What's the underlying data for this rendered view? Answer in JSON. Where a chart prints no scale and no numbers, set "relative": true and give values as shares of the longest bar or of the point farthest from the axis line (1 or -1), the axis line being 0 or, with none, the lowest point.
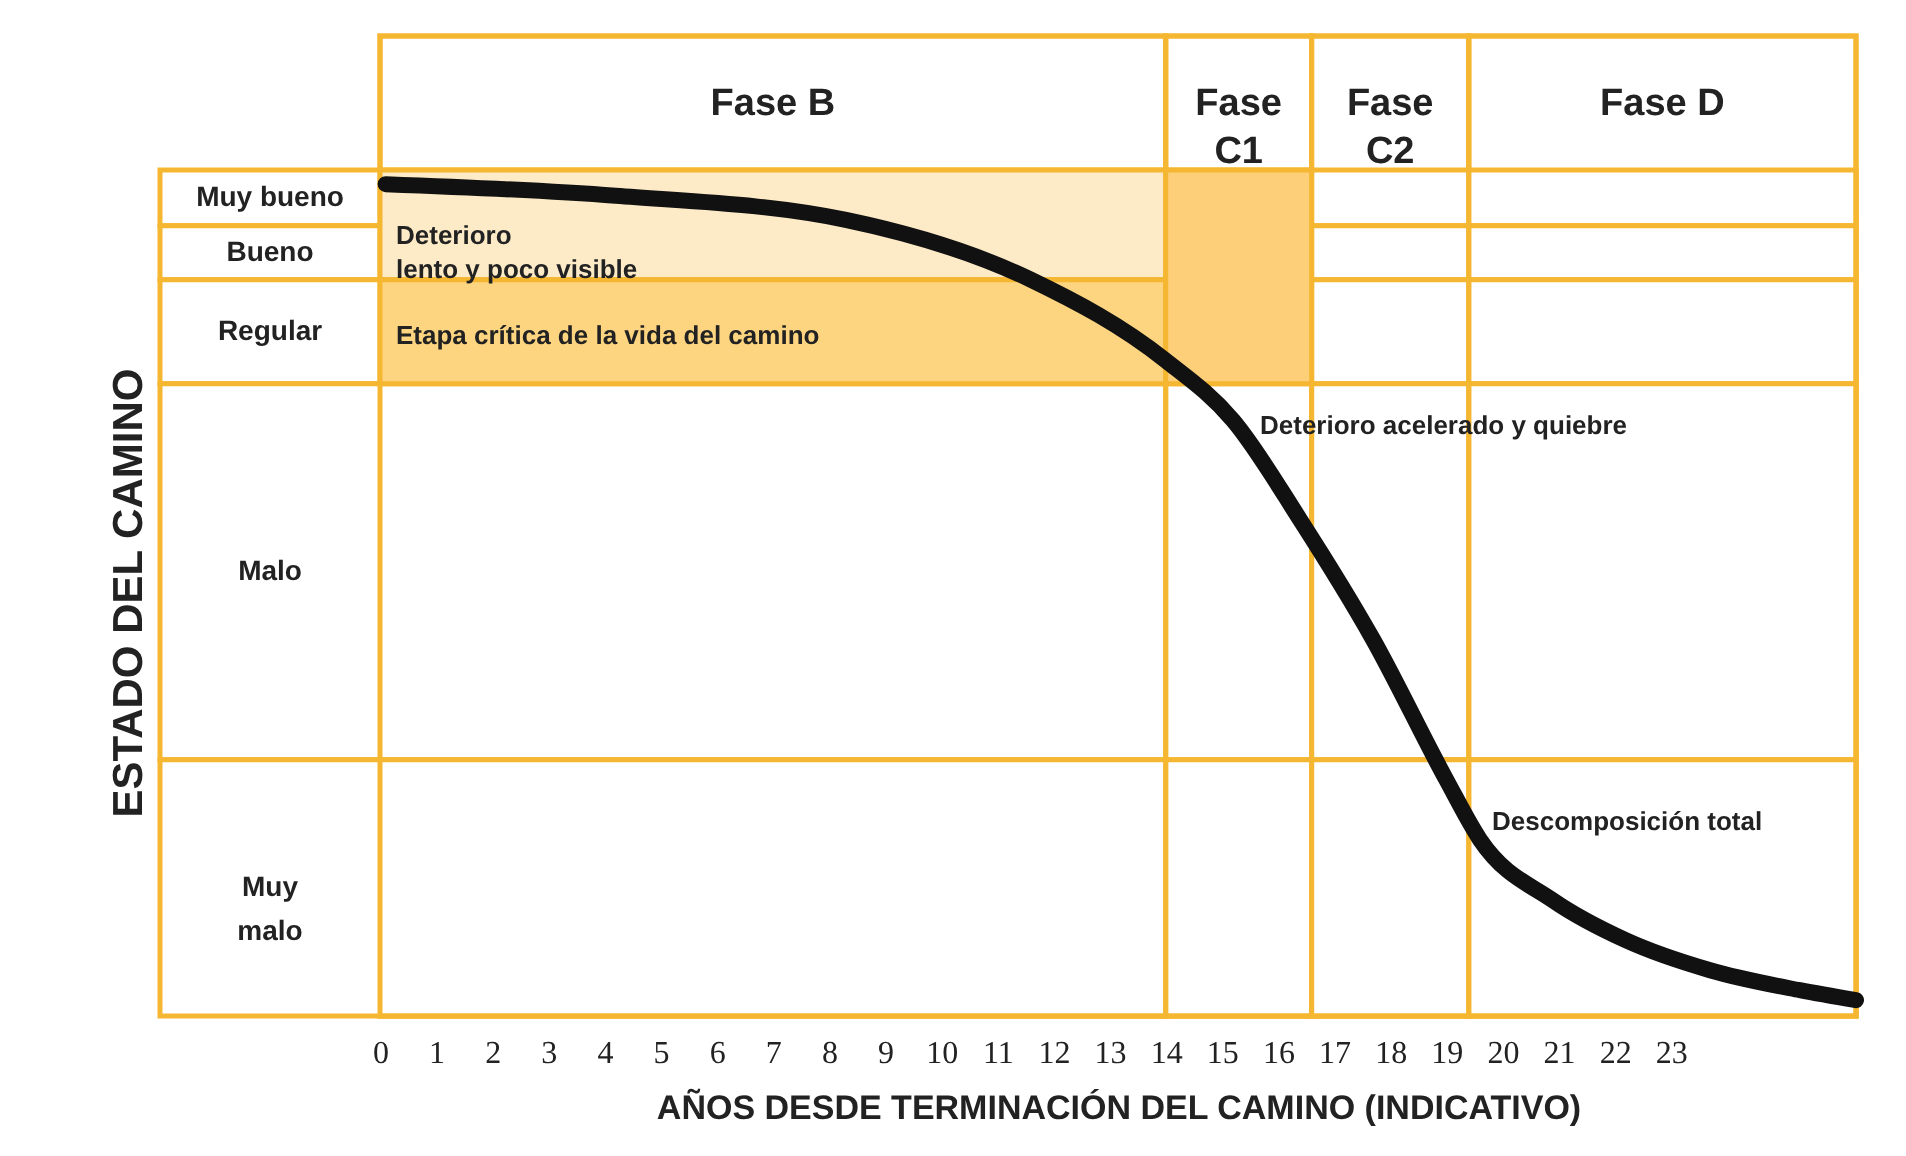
{
  "chart_data": {
    "type": "line",
    "relative": true,
    "xlabel": "AÑOS DESDE TERMINACIÓN DEL CAMINO (INDICATIVO)",
    "xlim": [
      0,
      26.3
    ],
    "xticks": [
      0,
      1,
      2,
      3,
      4,
      5,
      6,
      7,
      8,
      9,
      10,
      11,
      12,
      13,
      14,
      15,
      16,
      17,
      18,
      19,
      20,
      21,
      22,
      23
    ],
    "x": [
      0.1,
      4.2,
      8.3,
      11.6,
      14,
      15.2,
      16.4,
      17.7,
      19,
      19.6,
      20.9,
      22.2,
      23.7,
      25.3,
      26.3
    ],
    "series": [
      {
        "color": "#111111",
        "values": [
          1,
          0.986,
          0.957,
          0.885,
          0.788,
          0.716,
          0.596,
          0.452,
          0.284,
          0.212,
          0.139,
          0.091,
          0.055,
          0.031,
          0.019
        ]
      }
    ],
    "bands": [
      {
        "axis": "x",
        "from": 0,
        "to": 14,
        "label": "Fase B",
        "color": "#ffffff"
      },
      {
        "axis": "x",
        "from": 14,
        "to": 16.6,
        "label": "Fase\nC1",
        "color": "#ffffff"
      },
      {
        "axis": "x",
        "from": 16.6,
        "to": 19.4,
        "label": "Fase\nC2",
        "color": "#ffffff"
      },
      {
        "axis": "x",
        "from": 19.4,
        "to": 26.3,
        "label": "Fase D",
        "color": "#ffffff"
      },
      {
        "axis": "y",
        "from": 0.95,
        "to": 1.017,
        "label": "Muy bueno",
        "color": "#ffffff"
      },
      {
        "axis": "y",
        "from": 0.885,
        "to": 0.95,
        "label": "Bueno",
        "color": "#ffffff"
      },
      {
        "axis": "y",
        "from": 0.76,
        "to": 0.885,
        "label": "Regular",
        "color": "#ffffff"
      },
      {
        "axis": "y",
        "from": 0.308,
        "to": 0.76,
        "label": "Malo",
        "color": "#ffffff"
      },
      {
        "axis": "y",
        "from": 0,
        "to": 0.308,
        "label": "Muy\nmalo",
        "color": "#ffffff"
      }
    ],
    "annotations": [
      "Deterioro\nlento y poco visible",
      "Etapa crítica de la vida del camino",
      "Deterioro acelerado y quiebre",
      "Descomposición total",
      "ESTADO DEL CAMINO"
    ]
  }
}
